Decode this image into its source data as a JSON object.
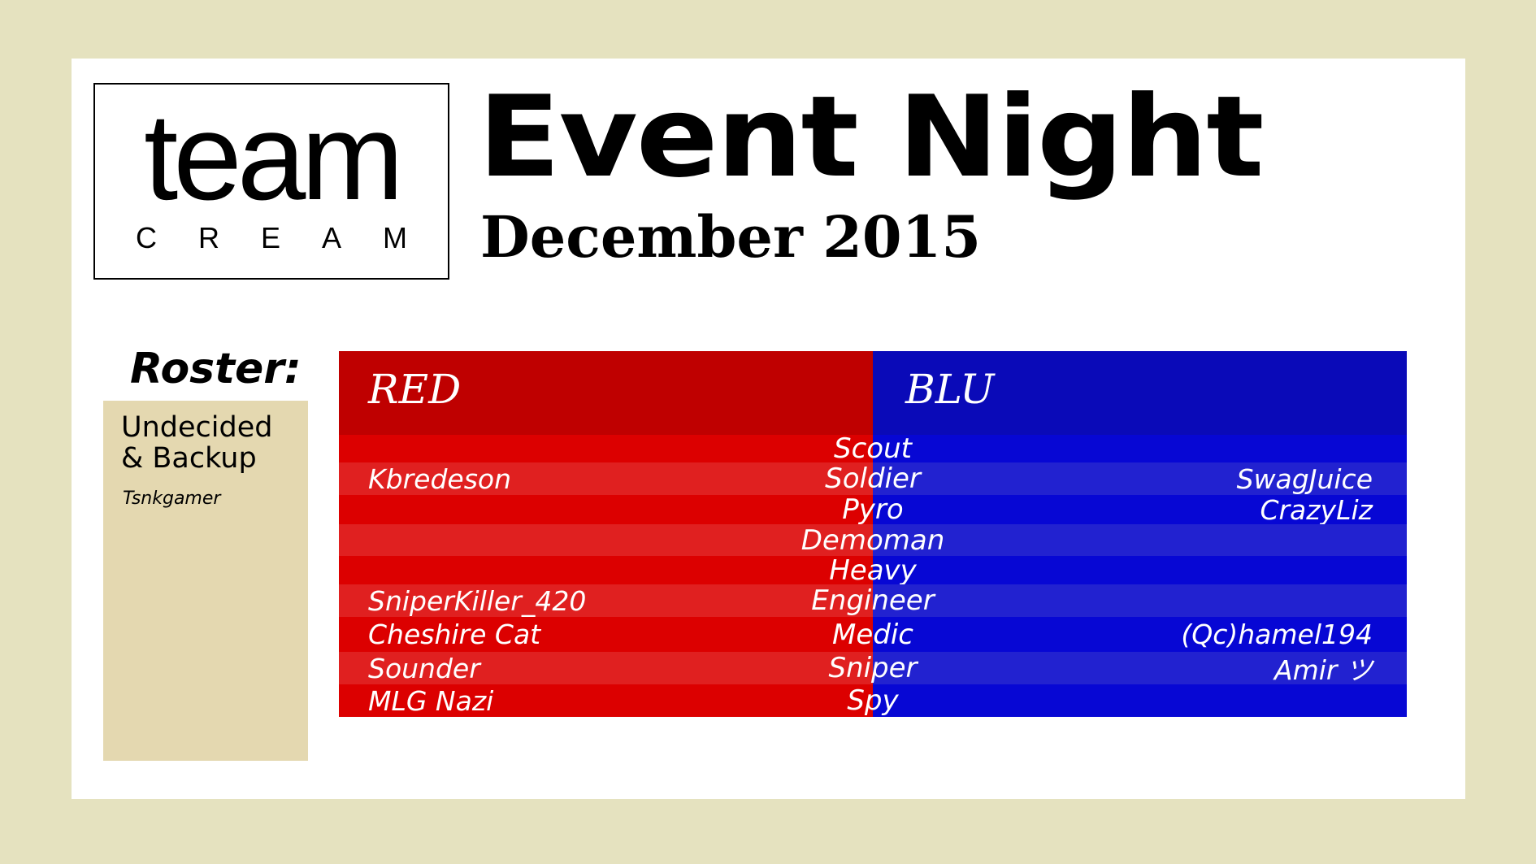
{
  "logo": {
    "word": "team",
    "subword": [
      "C",
      "R",
      "E",
      "A",
      "M"
    ]
  },
  "header": {
    "title": "Event Night",
    "subtitle": "December 2015"
  },
  "roster": {
    "label": "Roster:",
    "undecided_line1": "Undecided",
    "undecided_line2": "& Backup",
    "members": [
      "Tsnkgamer"
    ]
  },
  "teams": {
    "red": {
      "label": "RED",
      "color_header": "#bf0000",
      "color_a": "#dc0000",
      "color_b": "#e02020"
    },
    "blu": {
      "label": "BLU",
      "color_header": "#0a0ab8",
      "color_a": "#0707d4",
      "color_b": "#2222d0"
    }
  },
  "rows": [
    {
      "class": "Scout",
      "red": "",
      "blu": ""
    },
    {
      "class": "Soldier",
      "red": "Kbredeson",
      "blu": "SwagJuice"
    },
    {
      "class": "Pyro",
      "red": "",
      "blu": "CrazyLiz"
    },
    {
      "class": "Demoman",
      "red": "",
      "blu": ""
    },
    {
      "class": "Heavy",
      "red": "",
      "blu": ""
    },
    {
      "class": "Engineer",
      "red": "SniperKiller_420",
      "blu": ""
    },
    {
      "class": "Medic",
      "red": "Cheshire Cat",
      "blu": "(Qc)hamel194"
    },
    {
      "class": "Sniper",
      "red": "Sounder",
      "blu": "Amir ツ"
    },
    {
      "class": "Spy",
      "red": "MLG Nazi",
      "blu": ""
    }
  ]
}
